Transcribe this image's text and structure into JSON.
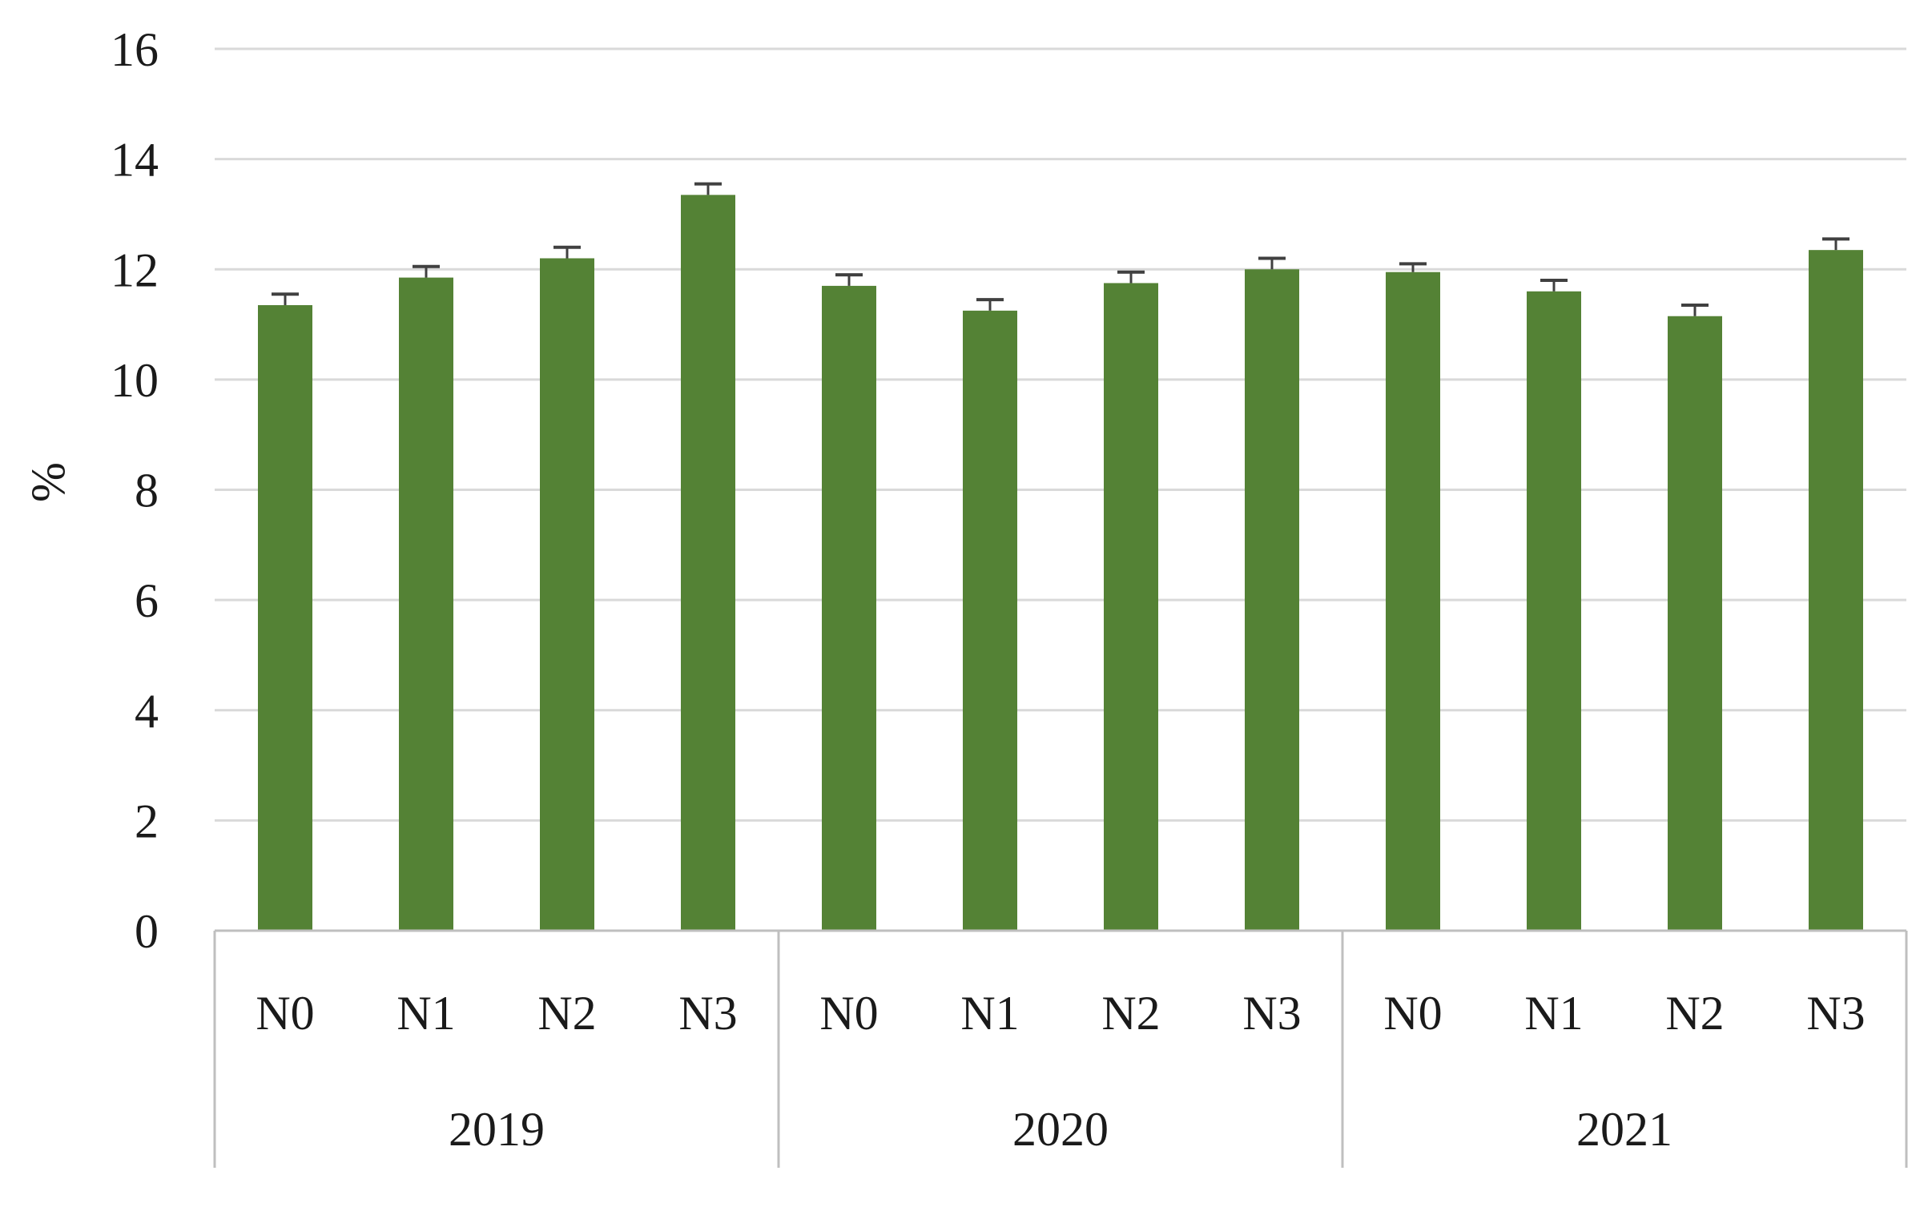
{
  "chart_data": {
    "type": "bar",
    "title": "",
    "xlabel": "",
    "ylabel": "%",
    "ylim": [
      0,
      16
    ],
    "yticks": [
      0,
      2,
      4,
      6,
      8,
      10,
      12,
      14,
      16
    ],
    "grid": true,
    "legend": "none",
    "groups": [
      {
        "label": "2019",
        "categories": [
          "N0",
          "N1",
          "N2",
          "N3"
        ]
      },
      {
        "label": "2020",
        "categories": [
          "N0",
          "N1",
          "N2",
          "N3"
        ]
      },
      {
        "label": "2021",
        "categories": [
          "N0",
          "N1",
          "N2",
          "N3"
        ]
      }
    ],
    "series": [
      {
        "values": [
          11.35,
          11.85,
          12.2,
          13.35,
          11.7,
          11.25,
          11.75,
          12.0,
          11.95,
          11.6,
          11.15,
          12.35
        ],
        "errors": [
          0.2,
          0.2,
          0.2,
          0.2,
          0.2,
          0.2,
          0.2,
          0.2,
          0.15,
          0.2,
          0.2,
          0.2
        ]
      }
    ],
    "colors": {
      "bar": "#548235",
      "error_bar": "#404040",
      "grid": "#d9d9d9",
      "axis": "#bfbfbf"
    }
  }
}
